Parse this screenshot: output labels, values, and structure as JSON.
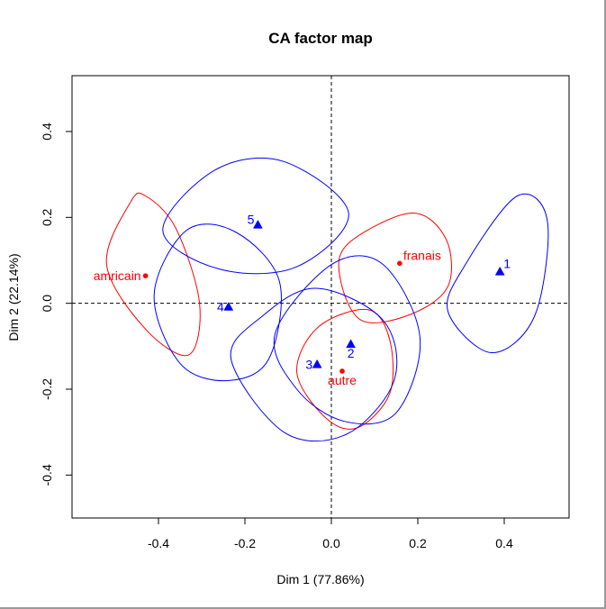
{
  "chart_data": {
    "type": "scatter",
    "title": "CA factor map",
    "xlabel": "Dim 1 (77.86%)",
    "ylabel": "Dim 2 (22.14%)",
    "xlim": [
      -0.6,
      0.55
    ],
    "ylim": [
      -0.5,
      0.53
    ],
    "xticks": [
      -0.4,
      -0.2,
      0.0,
      0.2,
      0.4
    ],
    "xtick_labels": [
      "-0.4",
      "-0.2",
      "0.0",
      "0.2",
      "0.4"
    ],
    "yticks": [
      -0.4,
      -0.2,
      0.0,
      0.2,
      0.4
    ],
    "ytick_labels": [
      "-0.4",
      "-0.2",
      "0.0",
      "0.2",
      "0.4"
    ],
    "grid": false,
    "reference_lines": {
      "x": 0,
      "y": 0,
      "style": "dashed"
    },
    "colors": {
      "rows": "#ff0000",
      "cols": "#0000ff",
      "ref": "#000000"
    },
    "points": [
      {
        "label": "amricain",
        "x": -0.43,
        "y": 0.064,
        "group": "rows",
        "marker": "circle",
        "label_side": "left"
      },
      {
        "label": "franais",
        "x": 0.158,
        "y": 0.093,
        "group": "rows",
        "marker": "circle",
        "label_side": "right"
      },
      {
        "label": "autre",
        "x": 0.025,
        "y": -0.158,
        "group": "rows",
        "marker": "circle",
        "label_side": "below"
      },
      {
        "label": "1",
        "x": 0.39,
        "y": 0.074,
        "group": "cols",
        "marker": "triangle",
        "label_side": "right"
      },
      {
        "label": "2",
        "x": 0.045,
        "y": -0.095,
        "group": "cols",
        "marker": "triangle",
        "label_side": "below"
      },
      {
        "label": "3",
        "x": -0.033,
        "y": -0.142,
        "group": "cols",
        "marker": "triangle",
        "label_side": "left"
      },
      {
        "label": "4",
        "x": -0.238,
        "y": -0.008,
        "group": "cols",
        "marker": "triangle",
        "label_side": "left"
      },
      {
        "label": "5",
        "x": -0.17,
        "y": 0.183,
        "group": "cols",
        "marker": "triangle",
        "label_side": "above-left"
      }
    ],
    "ellipses": [
      {
        "of": "amricain",
        "group": "rows",
        "points": [
          [
            -0.465,
            0.235
          ],
          [
            -0.52,
            0.09
          ],
          [
            -0.43,
            -0.06
          ],
          [
            -0.33,
            -0.12
          ],
          [
            -0.305,
            0.0
          ],
          [
            -0.36,
            0.175
          ],
          [
            -0.43,
            0.25
          ],
          [
            -0.465,
            0.235
          ]
        ]
      },
      {
        "of": "franais",
        "group": "rows",
        "points": [
          [
            0.04,
            0.14
          ],
          [
            0.185,
            0.21
          ],
          [
            0.265,
            0.15
          ],
          [
            0.27,
            0.04
          ],
          [
            0.185,
            -0.025
          ],
          [
            0.07,
            -0.04
          ],
          [
            0.02,
            0.06
          ],
          [
            0.04,
            0.14
          ]
        ]
      },
      {
        "of": "autre",
        "group": "rows",
        "points": [
          [
            -0.08,
            -0.16
          ],
          [
            -0.015,
            -0.265
          ],
          [
            0.06,
            -0.29
          ],
          [
            0.135,
            -0.21
          ],
          [
            0.135,
            -0.085
          ],
          [
            0.085,
            -0.015
          ],
          [
            -0.03,
            -0.055
          ],
          [
            -0.08,
            -0.16
          ]
        ]
      },
      {
        "of": "1",
        "group": "cols",
        "points": [
          [
            0.31,
            0.09
          ],
          [
            0.43,
            0.25
          ],
          [
            0.5,
            0.19
          ],
          [
            0.47,
            -0.03
          ],
          [
            0.37,
            -0.115
          ],
          [
            0.27,
            -0.02
          ],
          [
            0.31,
            0.09
          ]
        ]
      },
      {
        "of": "2",
        "group": "cols",
        "points": [
          [
            -0.13,
            -0.07
          ],
          [
            0.0,
            0.09
          ],
          [
            0.12,
            0.09
          ],
          [
            0.205,
            -0.08
          ],
          [
            0.15,
            -0.255
          ],
          [
            0.03,
            -0.275
          ],
          [
            -0.08,
            -0.2
          ],
          [
            -0.13,
            -0.07
          ]
        ]
      },
      {
        "of": "3",
        "group": "cols",
        "points": [
          [
            -0.232,
            -0.13
          ],
          [
            -0.16,
            -0.03
          ],
          [
            -0.035,
            0.035
          ],
          [
            0.12,
            -0.04
          ],
          [
            0.145,
            -0.18
          ],
          [
            0.035,
            -0.305
          ],
          [
            -0.11,
            -0.3
          ],
          [
            -0.232,
            -0.13
          ]
        ]
      },
      {
        "of": "4",
        "group": "cols",
        "points": [
          [
            -0.41,
            0.02
          ],
          [
            -0.335,
            0.17
          ],
          [
            -0.22,
            0.165
          ],
          [
            -0.12,
            0.05
          ],
          [
            -0.145,
            -0.13
          ],
          [
            -0.24,
            -0.18
          ],
          [
            -0.35,
            -0.14
          ],
          [
            -0.41,
            0.02
          ]
        ]
      },
      {
        "of": "5",
        "group": "cols",
        "points": [
          [
            -0.39,
            0.17
          ],
          [
            -0.27,
            0.31
          ],
          [
            -0.11,
            0.33
          ],
          [
            0.04,
            0.21
          ],
          [
            -0.08,
            0.085
          ],
          [
            -0.26,
            0.08
          ],
          [
            -0.39,
            0.17
          ]
        ]
      }
    ]
  }
}
